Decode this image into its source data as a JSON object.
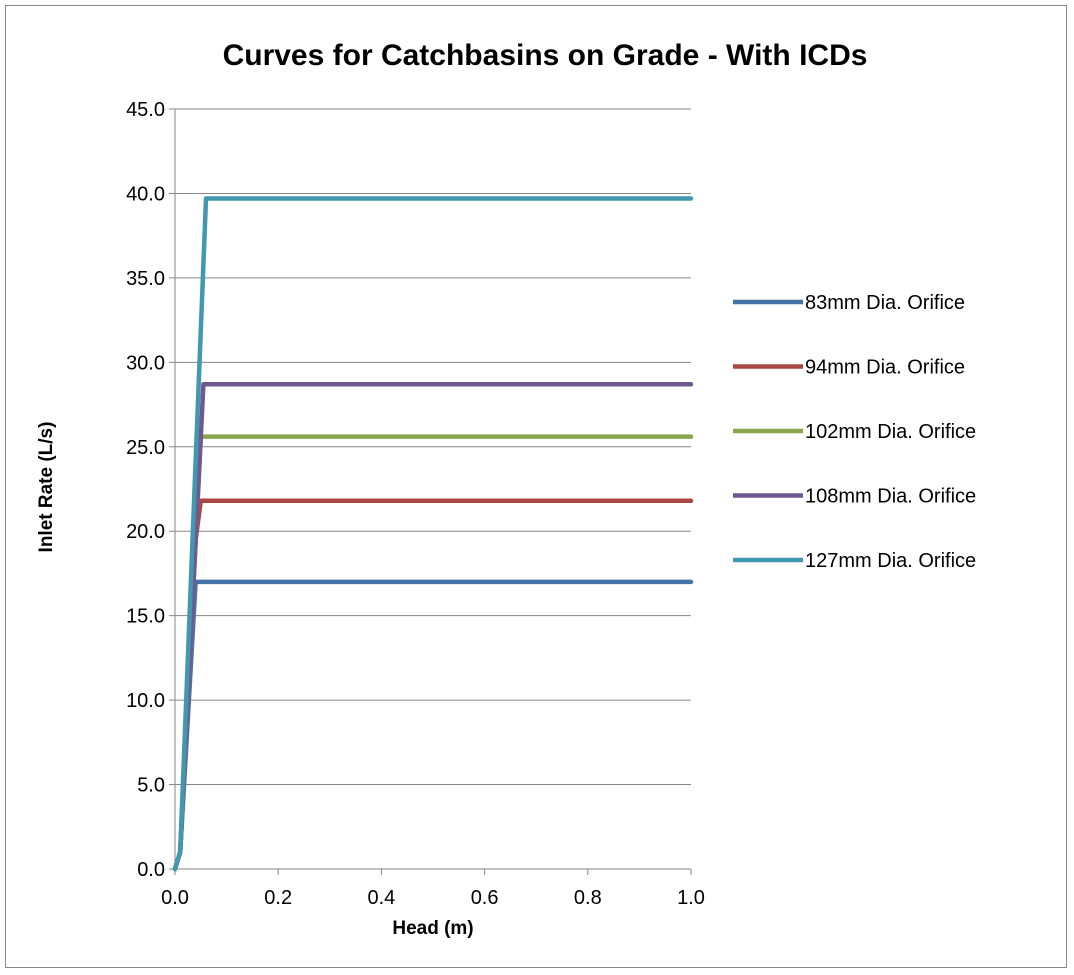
{
  "chart_data": {
    "type": "line",
    "title": "Curves for Catchbasins  on Grade - With ICDs",
    "xlabel": "Head (m)",
    "ylabel": "Inlet Rate (L/s)",
    "xlim": [
      0.0,
      1.0
    ],
    "ylim": [
      0.0,
      45.0
    ],
    "x_ticks": [
      "0.0",
      "0.2",
      "0.4",
      "0.6",
      "0.8",
      "1.0"
    ],
    "y_ticks": [
      "0.0",
      "5.0",
      "10.0",
      "15.0",
      "20.0",
      "25.0",
      "30.0",
      "35.0",
      "40.0",
      "45.0"
    ],
    "grid": "horizontal major gridlines",
    "legend_position": "right",
    "series": [
      {
        "name": "83mm Dia. Orifice",
        "color": "#4572a7",
        "points": [
          [
            0.0,
            0.0
          ],
          [
            0.01,
            1.0
          ],
          [
            0.04,
            17.0
          ],
          [
            1.0,
            17.0
          ]
        ]
      },
      {
        "name": "94mm Dia. Orifice",
        "color": "#aa4643",
        "points": [
          [
            0.0,
            0.0
          ],
          [
            0.01,
            1.0
          ],
          [
            0.04,
            19.5
          ],
          [
            0.05,
            21.8
          ],
          [
            1.0,
            21.8
          ]
        ]
      },
      {
        "name": "102mm Dia. Orifice",
        "color": "#89a54e",
        "points": [
          [
            0.0,
            0.0
          ],
          [
            0.01,
            1.0
          ],
          [
            0.05,
            25.6
          ],
          [
            1.0,
            25.6
          ]
        ]
      },
      {
        "name": "108mm Dia. Orifice",
        "color": "#71588f",
        "points": [
          [
            0.0,
            0.0
          ],
          [
            0.01,
            1.0
          ],
          [
            0.055,
            28.7
          ],
          [
            1.0,
            28.7
          ]
        ]
      },
      {
        "name": "127mm Dia. Orifice",
        "color": "#4198af",
        "points": [
          [
            0.0,
            0.0
          ],
          [
            0.01,
            1.0
          ],
          [
            0.06,
            39.7
          ],
          [
            1.0,
            39.7
          ]
        ]
      }
    ]
  }
}
